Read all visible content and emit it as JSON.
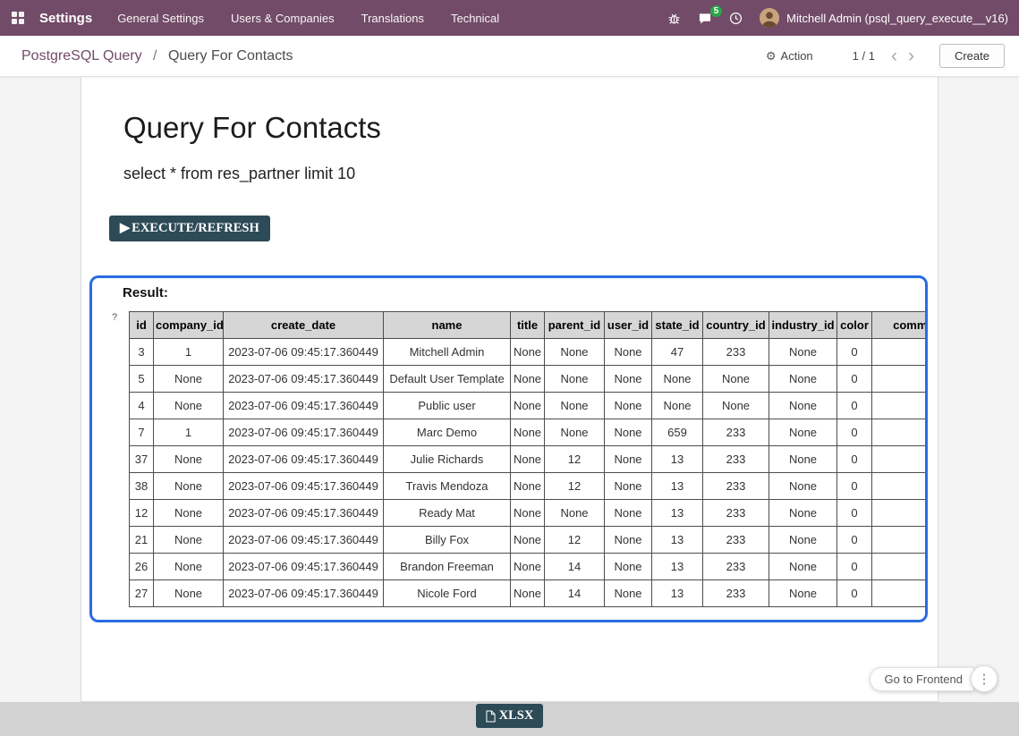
{
  "navbar": {
    "app_name": "Settings",
    "menu_items": [
      "General Settings",
      "Users & Companies",
      "Translations",
      "Technical"
    ],
    "message_badge": "5",
    "user": "Mitchell Admin (psql_query_execute__v16)"
  },
  "control_panel": {
    "breadcrumb": {
      "parent": "PostgreSQL Query",
      "separator": "/",
      "current": "Query For Contacts"
    },
    "action_label": "Action",
    "pager": "1 / 1",
    "create_label": "Create"
  },
  "main": {
    "title": "Query For Contacts",
    "query": "select * from res_partner limit 10",
    "execute_label": "EXECUTE/REFRESH",
    "result_label": "Result:",
    "help_mark": "?",
    "xlsx_label": "XLSX"
  },
  "table": {
    "headers": [
      "id",
      "company_id",
      "create_date",
      "name",
      "title",
      "parent_id",
      "user_id",
      "state_id",
      "country_id",
      "industry_id",
      "color",
      "comment"
    ],
    "rows": [
      [
        "3",
        "1",
        "2023-07-06 09:45:17.360449",
        "Mitchell Admin",
        "None",
        "None",
        "None",
        "47",
        "233",
        "None",
        "0",
        ""
      ],
      [
        "5",
        "None",
        "2023-07-06 09:45:17.360449",
        "Default User Template",
        "None",
        "None",
        "None",
        "None",
        "None",
        "None",
        "0",
        ""
      ],
      [
        "4",
        "None",
        "2023-07-06 09:45:17.360449",
        "Public user",
        "None",
        "None",
        "None",
        "None",
        "None",
        "None",
        "0",
        ""
      ],
      [
        "7",
        "1",
        "2023-07-06 09:45:17.360449",
        "Marc Demo",
        "None",
        "None",
        "None",
        "659",
        "233",
        "None",
        "0",
        ""
      ],
      [
        "37",
        "None",
        "2023-07-06 09:45:17.360449",
        "Julie Richards",
        "None",
        "12",
        "None",
        "13",
        "233",
        "None",
        "0",
        ""
      ],
      [
        "38",
        "None",
        "2023-07-06 09:45:17.360449",
        "Travis Mendoza",
        "None",
        "12",
        "None",
        "13",
        "233",
        "None",
        "0",
        ""
      ],
      [
        "12",
        "None",
        "2023-07-06 09:45:17.360449",
        "Ready Mat",
        "None",
        "None",
        "None",
        "13",
        "233",
        "None",
        "0",
        ""
      ],
      [
        "21",
        "None",
        "2023-07-06 09:45:17.360449",
        "Billy Fox",
        "None",
        "12",
        "None",
        "13",
        "233",
        "None",
        "0",
        ""
      ],
      [
        "26",
        "None",
        "2023-07-06 09:45:17.360449",
        "Brandon Freeman",
        "None",
        "14",
        "None",
        "13",
        "233",
        "None",
        "0",
        ""
      ],
      [
        "27",
        "None",
        "2023-07-06 09:45:17.360449",
        "Nicole Ford",
        "None",
        "14",
        "None",
        "13",
        "233",
        "None",
        "0",
        ""
      ]
    ]
  },
  "footer": {
    "frontend_label": "Go to Frontend"
  },
  "icons": {
    "gear": "⚙",
    "play": "▶",
    "chevron_left": "‹",
    "chevron_right": "›",
    "kebab": "⋮"
  },
  "colors": {
    "navbar_bg": "#714B67",
    "breadcrumb_link": "#714B67",
    "badge_green": "#28a745",
    "result_border": "#2a6ce2",
    "dark_button": "#2d4a57"
  }
}
